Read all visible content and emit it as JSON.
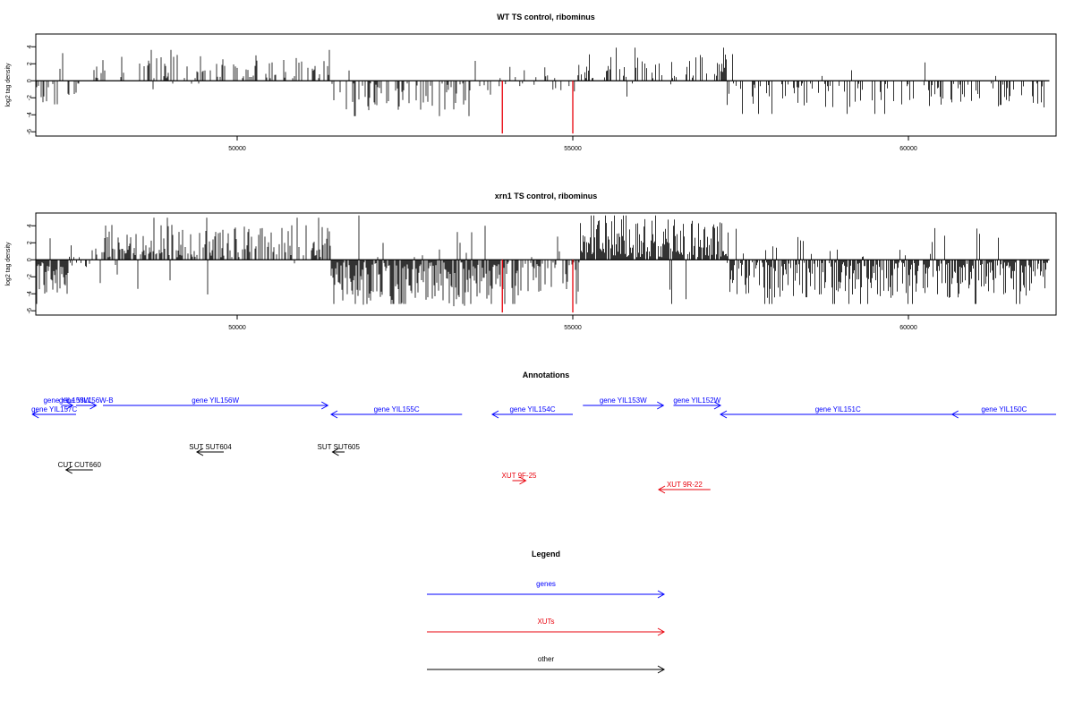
{
  "chart_data": [
    {
      "type": "bar",
      "title": "WT TS control, ribominus",
      "ylabel": "log2 tag density",
      "xlabel": "",
      "xlim": [
        47000,
        62200
      ],
      "ylim": [
        -6.5,
        5.5
      ],
      "x_ticks": [
        50000,
        55000,
        60000
      ],
      "y_ticks": [
        4,
        2,
        0,
        -2,
        -4,
        -6
      ],
      "grid": false,
      "highlight_color": "#e8000b",
      "highlights": [
        {
          "x": 53950,
          "y": -6.2
        },
        {
          "x": 55000,
          "y": -6.2
        }
      ],
      "segments": [
        {
          "x0": 47000,
          "x1": 47800,
          "density": 0.25,
          "amp": 2.5,
          "sign": -1
        },
        {
          "x0": 47800,
          "x1": 51400,
          "density": 0.3,
          "amp": 2.8,
          "sign": 1
        },
        {
          "x0": 51400,
          "x1": 53850,
          "density": 0.3,
          "amp": 3.2,
          "sign": -1
        },
        {
          "x0": 53850,
          "x1": 55100,
          "density": 0.2,
          "amp": 1.8,
          "sign": 0
        },
        {
          "x0": 55100,
          "x1": 57300,
          "density": 0.35,
          "amp": 3.0,
          "sign": 1
        },
        {
          "x0": 57300,
          "x1": 62100,
          "density": 0.3,
          "amp": 3.0,
          "sign": -1
        }
      ]
    },
    {
      "type": "bar",
      "title": "xrn1 TS control, ribominus",
      "ylabel": "log2 tag density",
      "xlabel": "",
      "xlim": [
        47000,
        62200
      ],
      "ylim": [
        -6.5,
        5.5
      ],
      "x_ticks": [
        50000,
        55000,
        60000
      ],
      "y_ticks": [
        4,
        2,
        0,
        -2,
        -4,
        -6
      ],
      "grid": false,
      "highlight_color": "#e8000b",
      "highlights": [
        {
          "x": 53950,
          "y": -6.2
        },
        {
          "x": 55000,
          "y": -6.2
        }
      ],
      "segments": [
        {
          "x0": 47000,
          "x1": 47500,
          "density": 0.9,
          "amp": 4.2,
          "sign": -1
        },
        {
          "x0": 47500,
          "x1": 47800,
          "density": 0.4,
          "amp": 1.5,
          "sign": 0
        },
        {
          "x0": 47800,
          "x1": 51400,
          "density": 0.55,
          "amp": 3.8,
          "sign": 1
        },
        {
          "x0": 51400,
          "x1": 54000,
          "density": 0.9,
          "amp": 5.2,
          "sign": -1
        },
        {
          "x0": 54000,
          "x1": 55100,
          "density": 0.6,
          "amp": 4.5,
          "sign": -1
        },
        {
          "x0": 55100,
          "x1": 57300,
          "density": 0.85,
          "amp": 4.5,
          "sign": 1
        },
        {
          "x0": 57300,
          "x1": 62100,
          "density": 0.75,
          "amp": 4.2,
          "sign": -1
        }
      ]
    }
  ],
  "annotations": {
    "title": "Annotations",
    "items": [
      {
        "label": "gene YIL157C",
        "x0": 47600,
        "x1": 46950,
        "row": 1,
        "color": "#0000ff"
      },
      {
        "label": "gene YIL158W",
        "x0": 47380,
        "x1": 47550,
        "row": 0,
        "color": "#0000ff"
      },
      {
        "label": "gene YIL156W-B",
        "x0": 47600,
        "x1": 47900,
        "row": 0,
        "color": "#0000ff"
      },
      {
        "label": "gene YIL156W",
        "x0": 48000,
        "x1": 51350,
        "row": 0,
        "color": "#0000ff"
      },
      {
        "label": "gene YIL155C",
        "x0": 53350,
        "x1": 51400,
        "row": 1,
        "color": "#0000ff"
      },
      {
        "label": "gene YIL154C",
        "x0": 55000,
        "x1": 53800,
        "row": 1,
        "color": "#0000ff"
      },
      {
        "label": "gene YIL153W",
        "x0": 55150,
        "x1": 56350,
        "row": 0,
        "color": "#0000ff"
      },
      {
        "label": "gene YIL152W",
        "x0": 56500,
        "x1": 57200,
        "row": 0,
        "color": "#0000ff"
      },
      {
        "label": "gene YIL151C",
        "x0": 60700,
        "x1": 57200,
        "row": 1,
        "color": "#0000ff"
      },
      {
        "label": "gene YIL150C",
        "x0": 62200,
        "x1": 60650,
        "row": 1,
        "color": "#0000ff"
      },
      {
        "label": "SUT SUT604",
        "x0": 49800,
        "x1": 49400,
        "row": 3,
        "color": "#000000"
      },
      {
        "label": "SUT SUT605",
        "x0": 51600,
        "x1": 51420,
        "row": 3,
        "color": "#000000"
      },
      {
        "label": "CUT CUT660",
        "x0": 47850,
        "x1": 47450,
        "row": 5,
        "color": "#000000"
      },
      {
        "label": "XUT 9F-25",
        "x0": 54100,
        "x1": 54300,
        "row": 6,
        "color": "#e8000b"
      },
      {
        "label": "XUT 9R-22",
        "x0": 57050,
        "x1": 56280,
        "row": 7,
        "color": "#e8000b"
      }
    ]
  },
  "legend": {
    "title": "Legend",
    "items": [
      {
        "label": "genes",
        "color": "#0000ff"
      },
      {
        "label": "XUTs",
        "color": "#e8000b"
      },
      {
        "label": "other",
        "color": "#000000"
      }
    ]
  }
}
